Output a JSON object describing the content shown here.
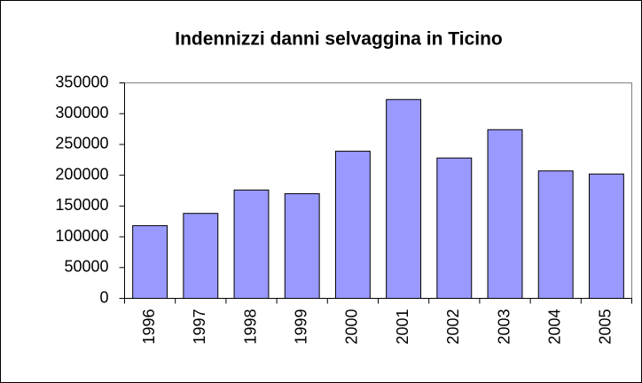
{
  "chart_data": {
    "type": "bar",
    "title": "Indennizzi danni selvaggina in Ticino",
    "categories": [
      "1996",
      "1997",
      "1998",
      "1999",
      "2000",
      "2001",
      "2002",
      "2003",
      "2004",
      "2005"
    ],
    "values": [
      118000,
      138000,
      176000,
      170000,
      239000,
      323000,
      228000,
      274000,
      207000,
      202000
    ],
    "color": "#9999ff",
    "ylim": [
      0,
      350000
    ],
    "yticks": [
      0,
      50000,
      100000,
      150000,
      200000,
      250000,
      300000,
      350000
    ],
    "grid": false
  }
}
